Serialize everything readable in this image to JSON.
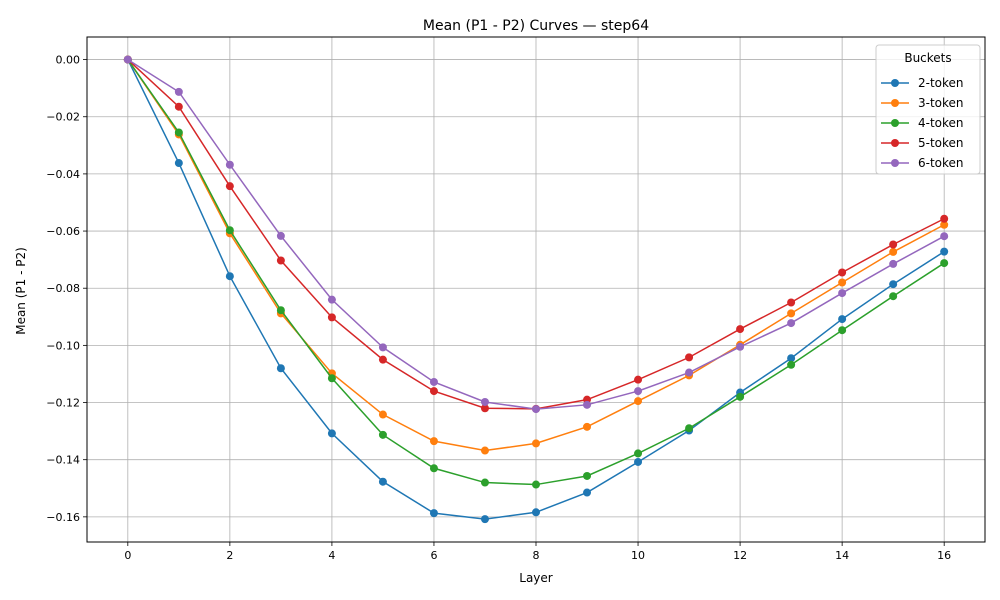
{
  "chart_data": {
    "type": "line",
    "title": "Mean (P1 - P2) Curves — step64",
    "xlabel": "Layer",
    "ylabel": "Mean (P1 - P2)",
    "xlim": [
      -0.8,
      16.8
    ],
    "ylim": [
      -0.1688,
      0.0079
    ],
    "x_ticks": [
      0,
      2,
      4,
      6,
      8,
      10,
      12,
      14,
      16
    ],
    "x_tick_labels": [
      "0",
      "2",
      "4",
      "6",
      "8",
      "10",
      "12",
      "14",
      "16"
    ],
    "y_ticks": [
      0.0,
      -0.02,
      -0.04,
      -0.06,
      -0.08,
      -0.1,
      -0.12,
      -0.14,
      -0.16
    ],
    "y_tick_labels": [
      "0.00",
      "−0.02",
      "−0.04",
      "−0.06",
      "−0.08",
      "−0.10",
      "−0.12",
      "−0.14",
      "−0.16"
    ],
    "grid": true,
    "legend": {
      "title": "Buckets",
      "placement": "top-right"
    },
    "x": [
      0,
      1,
      2,
      3,
      4,
      5,
      6,
      7,
      8,
      9,
      10,
      11,
      12,
      13,
      14,
      15,
      16
    ],
    "series": [
      {
        "name": "2-token",
        "color": "#1f77b4",
        "values": [
          0.0,
          -0.0362,
          -0.0758,
          -0.108,
          -0.1308,
          -0.1477,
          -0.1587,
          -0.1608,
          -0.1584,
          -0.1515,
          -0.1408,
          -0.1298,
          -0.1165,
          -0.1045,
          -0.0908,
          -0.0786,
          -0.0672
        ]
      },
      {
        "name": "3-token",
        "color": "#ff7f0e",
        "values": [
          0.0,
          -0.0262,
          -0.0608,
          -0.0888,
          -0.1098,
          -0.1242,
          -0.1335,
          -0.1368,
          -0.1343,
          -0.1285,
          -0.1195,
          -0.1105,
          -0.0998,
          -0.0888,
          -0.078,
          -0.0673,
          -0.0578
        ]
      },
      {
        "name": "4-token",
        "color": "#2ca02c",
        "values": [
          0.0,
          -0.0255,
          -0.0597,
          -0.0877,
          -0.1115,
          -0.1313,
          -0.143,
          -0.148,
          -0.1487,
          -0.1457,
          -0.1378,
          -0.129,
          -0.118,
          -0.1068,
          -0.0947,
          -0.0828,
          -0.0712
        ]
      },
      {
        "name": "5-token",
        "color": "#d62728",
        "values": [
          0.0,
          -0.0165,
          -0.0443,
          -0.0703,
          -0.0902,
          -0.105,
          -0.116,
          -0.122,
          -0.1222,
          -0.119,
          -0.112,
          -0.1042,
          -0.0943,
          -0.085,
          -0.0745,
          -0.0647,
          -0.0557
        ]
      },
      {
        "name": "6-token",
        "color": "#9467bd",
        "values": [
          0.0,
          -0.0113,
          -0.0368,
          -0.0617,
          -0.084,
          -0.1007,
          -0.1128,
          -0.1198,
          -0.1223,
          -0.1208,
          -0.116,
          -0.1095,
          -0.1005,
          -0.0922,
          -0.0817,
          -0.0715,
          -0.0618
        ]
      }
    ]
  }
}
